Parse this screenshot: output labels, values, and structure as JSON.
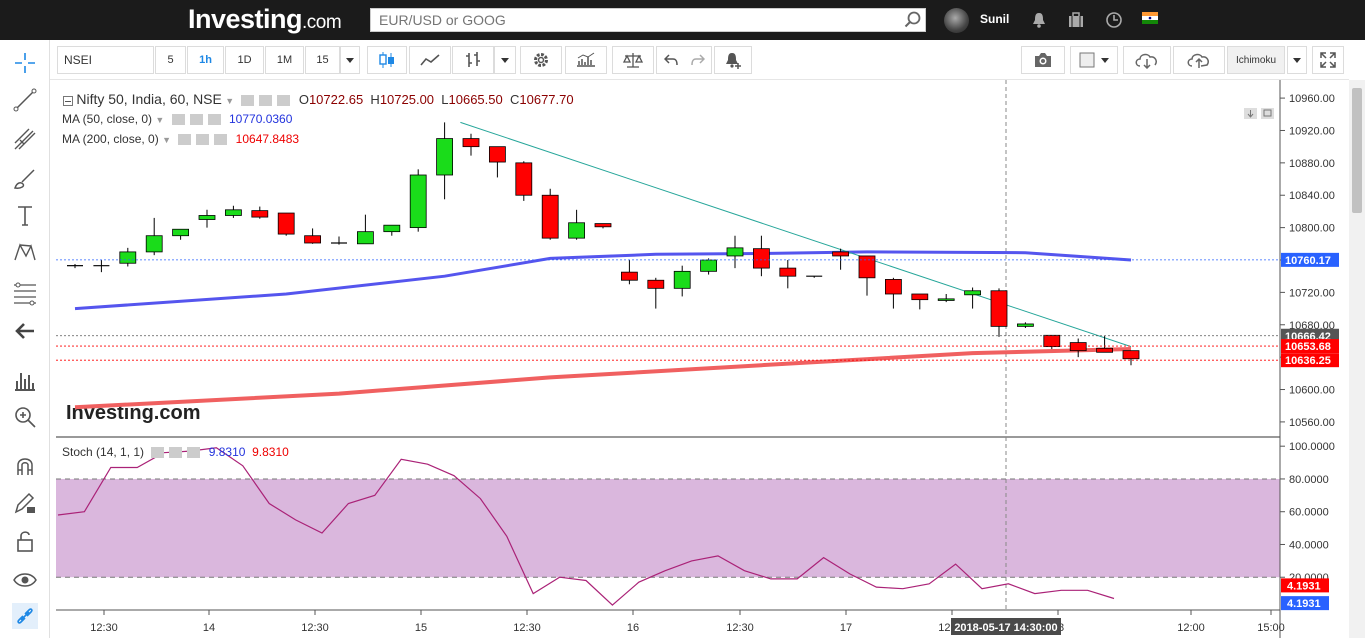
{
  "header": {
    "logo_main": "Investing",
    "logo_suffix": ".com",
    "search_placeholder": "EUR/USD or GOOG",
    "username": "Sunil"
  },
  "toolbar": {
    "symbol": "NSEI",
    "intervals": [
      "5",
      "1h",
      "1D",
      "1M",
      "15"
    ],
    "active_interval": "1h",
    "indicator_button": "Ichimoku"
  },
  "legend": {
    "title": "Nifty 50, India, 60, NSE",
    "open_label": "O",
    "open": "10722.65",
    "high_label": "H",
    "high": "10725.00",
    "low_label": "L",
    "low": "10665.50",
    "close_label": "C",
    "close": "10677.70",
    "ma50_label": "MA (50, close, 0)",
    "ma50_value": "10770.0360",
    "ma200_label": "MA (200, close, 0)",
    "ma200_value": "10647.8483",
    "stoch_label": "Stoch (14, 1, 1)",
    "stoch_k": "9.8310",
    "stoch_d": "9.8310"
  },
  "watermark": "Investing.com",
  "colors": {
    "up": "#1adc1a",
    "down": "#ff0000",
    "ma50": "#5555ee",
    "ma200": "#f06060",
    "trendline": "#26a69a",
    "stoch": "#aa2277",
    "stoch_band": "#dab7dd"
  },
  "chart_data": [
    {
      "type": "candlestick",
      "ylim": [
        10550,
        10970
      ],
      "y_ticks": [
        "10960.00",
        "10920.00",
        "10880.00",
        "10840.00",
        "10800.00",
        "10760.00",
        "10720.00",
        "10680.00",
        "10640.00",
        "10600.00",
        "10560.00"
      ],
      "x_ticks": [
        "12:30",
        "14",
        "12:30",
        "15",
        "12:30",
        "16",
        "12:30",
        "17",
        "12:30",
        "18",
        "12:00",
        "15:00"
      ],
      "price_labels": [
        {
          "text": "10760.17",
          "value": 10760.17,
          "color": "#2962ff"
        },
        {
          "text": "10666.42",
          "value": 10666.42,
          "color": "#555555"
        },
        {
          "text": "10653.68",
          "value": 10653.68,
          "color": "#ff0000"
        },
        {
          "text": "10636.25",
          "value": 10636.25,
          "color": "#ff0000"
        }
      ],
      "crosshair_label": "2018-05-17 14:30:00",
      "candles": [
        {
          "o": 10752,
          "h": 10755,
          "l": 10750,
          "c": 10753
        },
        {
          "o": 10753,
          "h": 10760,
          "l": 10745,
          "c": 10753
        },
        {
          "o": 10756,
          "h": 10775,
          "l": 10752,
          "c": 10770
        },
        {
          "o": 10770,
          "h": 10812,
          "l": 10766,
          "c": 10790
        },
        {
          "o": 10790,
          "h": 10797,
          "l": 10785,
          "c": 10798
        },
        {
          "o": 10810,
          "h": 10822,
          "l": 10800,
          "c": 10815
        },
        {
          "o": 10815,
          "h": 10827,
          "l": 10812,
          "c": 10822
        },
        {
          "o": 10821,
          "h": 10826,
          "l": 10811,
          "c": 10813
        },
        {
          "o": 10818,
          "h": 10818,
          "l": 10790,
          "c": 10792
        },
        {
          "o": 10790,
          "h": 10799,
          "l": 10780,
          "c": 10781
        },
        {
          "o": 10781,
          "h": 10789,
          "l": 10779,
          "c": 10780
        },
        {
          "o": 10780,
          "h": 10816,
          "l": 10780,
          "c": 10795
        },
        {
          "o": 10795,
          "h": 10800,
          "l": 10790,
          "c": 10803
        },
        {
          "o": 10800,
          "h": 10872,
          "l": 10795,
          "c": 10865
        },
        {
          "o": 10865,
          "h": 10930,
          "l": 10835,
          "c": 10910
        },
        {
          "o": 10910,
          "h": 10916,
          "l": 10889,
          "c": 10900
        },
        {
          "o": 10900,
          "h": 10900,
          "l": 10862,
          "c": 10881
        },
        {
          "o": 10880,
          "h": 10882,
          "l": 10833,
          "c": 10840
        },
        {
          "o": 10840,
          "h": 10848,
          "l": 10785,
          "c": 10787
        },
        {
          "o": 10787,
          "h": 10822,
          "l": 10785,
          "c": 10806
        },
        {
          "o": 10805,
          "h": 10805,
          "l": 10799,
          "c": 10801
        },
        {
          "o": 10745,
          "h": 10760,
          "l": 10730,
          "c": 10735
        },
        {
          "o": 10735,
          "h": 10738,
          "l": 10700,
          "c": 10725
        },
        {
          "o": 10725,
          "h": 10753,
          "l": 10715,
          "c": 10746
        },
        {
          "o": 10746,
          "h": 10762,
          "l": 10742,
          "c": 10760
        },
        {
          "o": 10765,
          "h": 10790,
          "l": 10750,
          "c": 10775
        },
        {
          "o": 10774,
          "h": 10790,
          "l": 10740,
          "c": 10750
        },
        {
          "o": 10750,
          "h": 10760,
          "l": 10725,
          "c": 10740
        },
        {
          "o": 10740,
          "h": 10740,
          "l": 10738,
          "c": 10739
        },
        {
          "o": 10770,
          "h": 10774,
          "l": 10748,
          "c": 10765
        },
        {
          "o": 10765,
          "h": 10765,
          "l": 10716,
          "c": 10738
        },
        {
          "o": 10736,
          "h": 10738,
          "l": 10700,
          "c": 10718
        },
        {
          "o": 10718,
          "h": 10718,
          "l": 10699,
          "c": 10711
        },
        {
          "o": 10710,
          "h": 10718,
          "l": 10708,
          "c": 10712
        },
        {
          "o": 10717,
          "h": 10726,
          "l": 10700,
          "c": 10722
        },
        {
          "o": 10722,
          "h": 10725,
          "l": 10665,
          "c": 10678
        },
        {
          "o": 10678,
          "h": 10683,
          "l": 10676,
          "c": 10681
        },
        {
          "o": 10667,
          "h": 10667,
          "l": 10650,
          "c": 10653
        },
        {
          "o": 10658,
          "h": 10663,
          "l": 10640,
          "c": 10648
        },
        {
          "o": 10651,
          "h": 10666,
          "l": 10647,
          "c": 10646
        },
        {
          "o": 10648,
          "h": 10648,
          "l": 10630,
          "c": 10638
        }
      ],
      "ma50": [
        [
          0,
          10700
        ],
        [
          8,
          10718
        ],
        [
          14,
          10740
        ],
        [
          18,
          10762
        ],
        [
          22,
          10767
        ],
        [
          26,
          10768
        ],
        [
          30,
          10770
        ],
        [
          36,
          10769
        ],
        [
          40,
          10760
        ]
      ],
      "ma200": [
        [
          0,
          10578
        ],
        [
          10,
          10595
        ],
        [
          18,
          10615
        ],
        [
          26,
          10630
        ],
        [
          34,
          10645
        ],
        [
          40,
          10650
        ]
      ],
      "trendline": [
        [
          14.6,
          10930
        ],
        [
          40,
          10653
        ]
      ]
    },
    {
      "type": "line",
      "title": "Stoch (14, 1, 1)",
      "ylim": [
        0,
        105
      ],
      "y_ticks": [
        "100.0000",
        "80.0000",
        "60.0000",
        "40.0000",
        "20.0000"
      ],
      "band": [
        20,
        80
      ],
      "current_labels": [
        "4.1931",
        "4.1931"
      ],
      "values": [
        58,
        60,
        87,
        87,
        96,
        97,
        99,
        88,
        65,
        55,
        47,
        65,
        70,
        92,
        89,
        82,
        68,
        45,
        10,
        20,
        18,
        3,
        17,
        24,
        30,
        33,
        24,
        19,
        19,
        32,
        22,
        14,
        13,
        16,
        28,
        13,
        16,
        10,
        12,
        12,
        7
      ]
    }
  ]
}
